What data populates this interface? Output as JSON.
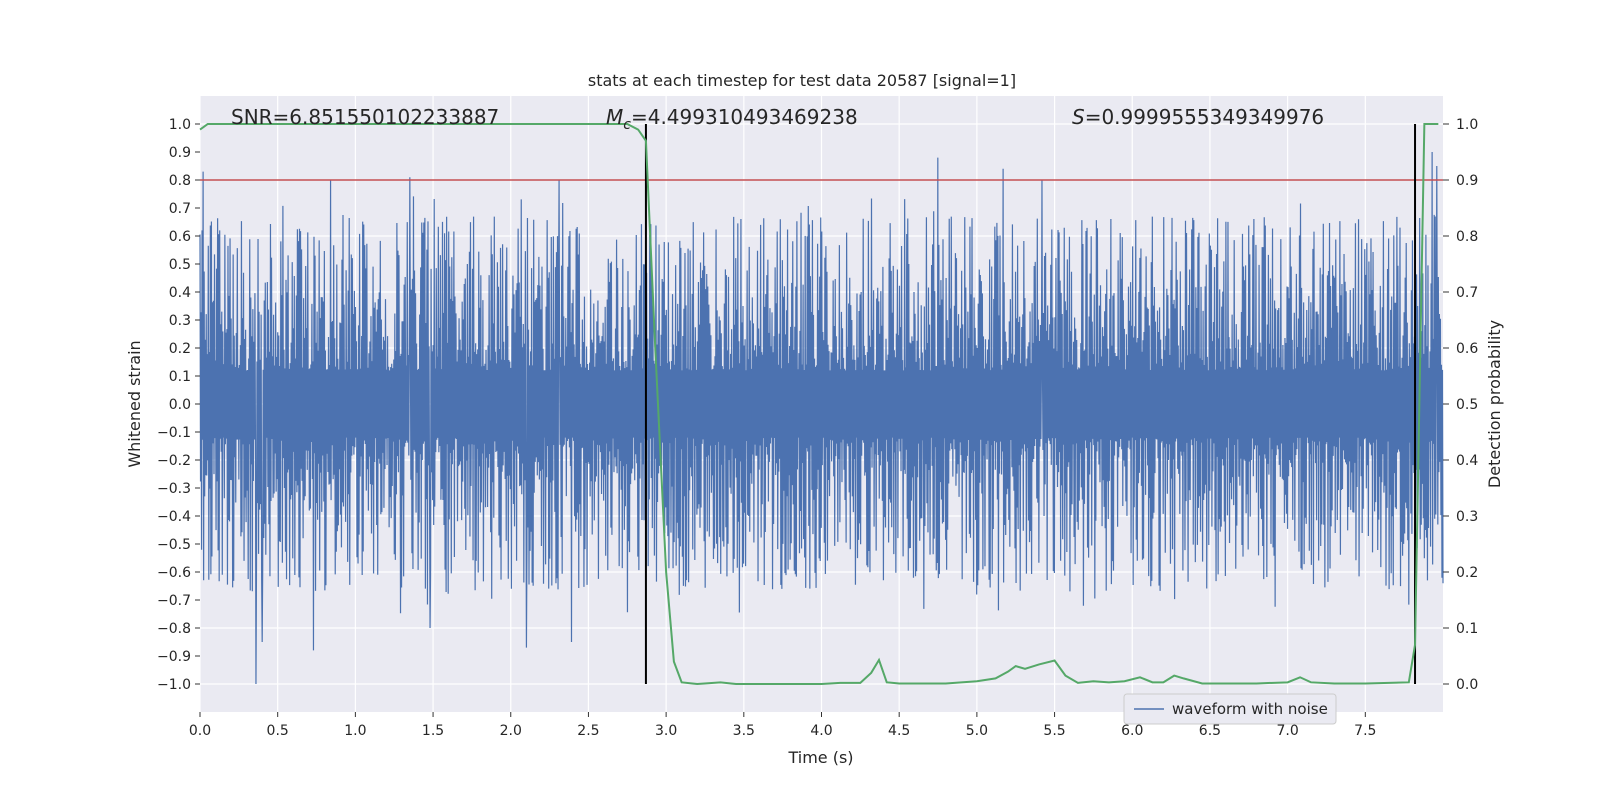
{
  "chart_data": {
    "type": "line",
    "title": "stats at each timestep for test data 20587 [signal=1]",
    "xlabel": "Time (s)",
    "ylabel_left": "Whitened strain",
    "ylabel_right": "Detection probability",
    "xlim": [
      0.0,
      8.0
    ],
    "ylim_left": [
      -1.1,
      1.1
    ],
    "ylim_right": [
      -0.05,
      1.05
    ],
    "x_ticks": [
      "0.0",
      "0.5",
      "1.0",
      "1.5",
      "2.0",
      "2.5",
      "3.0",
      "3.5",
      "4.0",
      "4.5",
      "5.0",
      "5.5",
      "6.0",
      "6.5",
      "7.0",
      "7.5"
    ],
    "y_ticks_left": [
      "1.0",
      "0.9",
      "0.8",
      "0.7",
      "0.6",
      "0.5",
      "0.4",
      "0.3",
      "0.2",
      "0.1",
      "0.0",
      "-0.1",
      "-0.2",
      "-0.3",
      "-0.4",
      "-0.5",
      "-0.6",
      "-0.7",
      "-0.8",
      "-0.9",
      "-1.0"
    ],
    "y_ticks_right": [
      "1.0",
      "0.9",
      "0.8",
      "0.7",
      "0.6",
      "0.5",
      "0.4",
      "0.3",
      "0.2",
      "0.1",
      "0.0"
    ],
    "annotations": {
      "snr": "SNR=6.851550102233887",
      "mc_symbol": "M",
      "mc_sub": "c",
      "mc_value": "=4.499310493469238",
      "s_symbol": "S",
      "s_value": "=0.9999555349349976"
    },
    "legend": {
      "label": "waveform with noise",
      "loc": "lower-right"
    },
    "threshold_line": {
      "axis": "right",
      "y": 0.9
    },
    "vertical_lines": [
      2.87,
      7.82
    ],
    "vertical_line_range_left": [
      -1.0,
      1.0
    ],
    "waveform": {
      "name": "waveform with noise",
      "axis": "left",
      "x_range": [
        0.0,
        8.0
      ],
      "samples": 2400,
      "approx_amplitude": 0.55,
      "max": 0.9,
      "min": -1.0,
      "notable_peaks": [
        {
          "x": 0.02,
          "y": 0.83
        },
        {
          "x": 0.36,
          "y": -1.0
        },
        {
          "x": 0.4,
          "y": -0.85
        },
        {
          "x": 0.73,
          "y": -0.88
        },
        {
          "x": 0.84,
          "y": 0.8
        },
        {
          "x": 1.35,
          "y": 0.81
        },
        {
          "x": 1.48,
          "y": -0.8
        },
        {
          "x": 2.1,
          "y": -0.87
        },
        {
          "x": 2.31,
          "y": 0.8
        },
        {
          "x": 2.39,
          "y": -0.85
        },
        {
          "x": 4.75,
          "y": 0.88
        },
        {
          "x": 5.17,
          "y": 0.84
        },
        {
          "x": 5.42,
          "y": 0.8
        },
        {
          "x": 7.93,
          "y": 0.9
        },
        {
          "x": 7.96,
          "y": 0.85
        }
      ]
    },
    "detection_probability": {
      "name": "detection probability",
      "axis": "right",
      "color": "#55a868",
      "x": [
        0.0,
        0.05,
        0.2,
        0.5,
        1.0,
        1.5,
        2.0,
        2.5,
        2.75,
        2.82,
        2.87,
        2.93,
        3.0,
        3.05,
        3.1,
        3.2,
        3.35,
        3.45,
        3.6,
        3.8,
        4.0,
        4.12,
        4.25,
        4.32,
        4.37,
        4.42,
        4.5,
        4.8,
        5.0,
        5.12,
        5.2,
        5.25,
        5.31,
        5.4,
        5.5,
        5.57,
        5.65,
        5.75,
        5.85,
        5.95,
        6.05,
        6.13,
        6.2,
        6.27,
        6.33,
        6.45,
        6.6,
        6.8,
        7.0,
        7.08,
        7.15,
        7.3,
        7.5,
        7.78,
        7.82,
        7.88,
        7.92,
        7.97
      ],
      "y": [
        0.99,
        1.0,
        1.0,
        1.0,
        1.0,
        1.0,
        1.0,
        1.0,
        1.0,
        0.99,
        0.97,
        0.6,
        0.2,
        0.04,
        0.003,
        0.0,
        0.003,
        0.0,
        0.0,
        0.0,
        0.0,
        0.002,
        0.002,
        0.02,
        0.043,
        0.003,
        0.001,
        0.001,
        0.005,
        0.01,
        0.022,
        0.032,
        0.027,
        0.035,
        0.042,
        0.015,
        0.002,
        0.005,
        0.003,
        0.005,
        0.012,
        0.003,
        0.003,
        0.015,
        0.01,
        0.001,
        0.001,
        0.001,
        0.003,
        0.012,
        0.003,
        0.001,
        0.001,
        0.003,
        0.07,
        1.0,
        1.0,
        1.0
      ]
    },
    "colors": {
      "waveform": "#4c72b0",
      "probability": "#55a868",
      "threshold": "#c44e52",
      "vertical": "#000000",
      "plot_background": "#eaeaf2",
      "grid": "#ffffff"
    }
  }
}
